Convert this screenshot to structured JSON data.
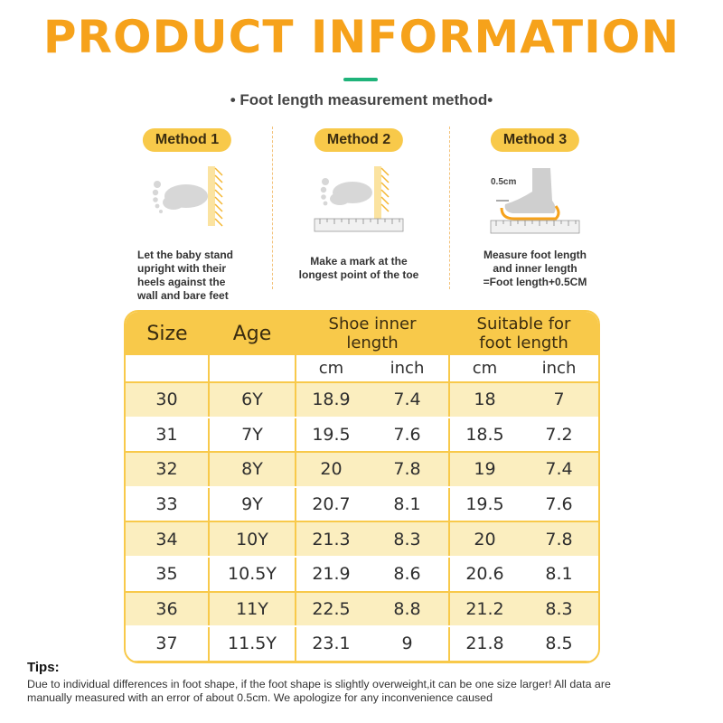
{
  "title": "PRODUCT INFORMATION",
  "subtitle": "• Foot length measurement method•",
  "methods": [
    {
      "label": "Method 1",
      "caption_lines": [
        "Let the baby stand",
        "upright with their",
        "heels against the",
        "wall and bare feet"
      ]
    },
    {
      "label": "Method 2",
      "caption_lines": [
        "Make a mark at the",
        "longest point of the toe"
      ]
    },
    {
      "label": "Method 3",
      "measure_label": "0.5cm",
      "caption_lines": [
        "Measure foot length",
        "and inner length",
        "=Foot length+0.5CM"
      ]
    }
  ],
  "colors": {
    "accent": "#f6a21b",
    "header_fill": "#f8c94a",
    "row_fill": "#fbeebf",
    "title_bar": "#1fb37a"
  },
  "table": {
    "headers": {
      "size": "Size",
      "age": "Age",
      "shoe_inner": [
        "Shoe inner",
        "length"
      ],
      "suitable": [
        "Suitable for",
        "foot length"
      ]
    },
    "units": [
      "cm",
      "inch",
      "cm",
      "inch"
    ],
    "rows": [
      [
        "30",
        "6Y",
        "18.9",
        "7.4",
        "18",
        "7"
      ],
      [
        "31",
        "7Y",
        "19.5",
        "7.6",
        "18.5",
        "7.2"
      ],
      [
        "32",
        "8Y",
        "20",
        "7.8",
        "19",
        "7.4"
      ],
      [
        "33",
        "9Y",
        "20.7",
        "8.1",
        "19.5",
        "7.6"
      ],
      [
        "34",
        "10Y",
        "21.3",
        "8.3",
        "20",
        "7.8"
      ],
      [
        "35",
        "10.5Y",
        "21.9",
        "8.6",
        "20.6",
        "8.1"
      ],
      [
        "36",
        "11Y",
        "22.5",
        "8.8",
        "21.2",
        "8.3"
      ],
      [
        "37",
        "11.5Y",
        "23.1",
        "9",
        "21.8",
        "8.5"
      ]
    ]
  },
  "tips": {
    "title": "Tips:",
    "lines": [
      "Due to individual differences in foot shape, if the foot shape is slightly overweight,it can be one size larger! All data are",
      "manually measured with an error of about 0.5cm. We apologize for any inconvenience caused"
    ]
  }
}
